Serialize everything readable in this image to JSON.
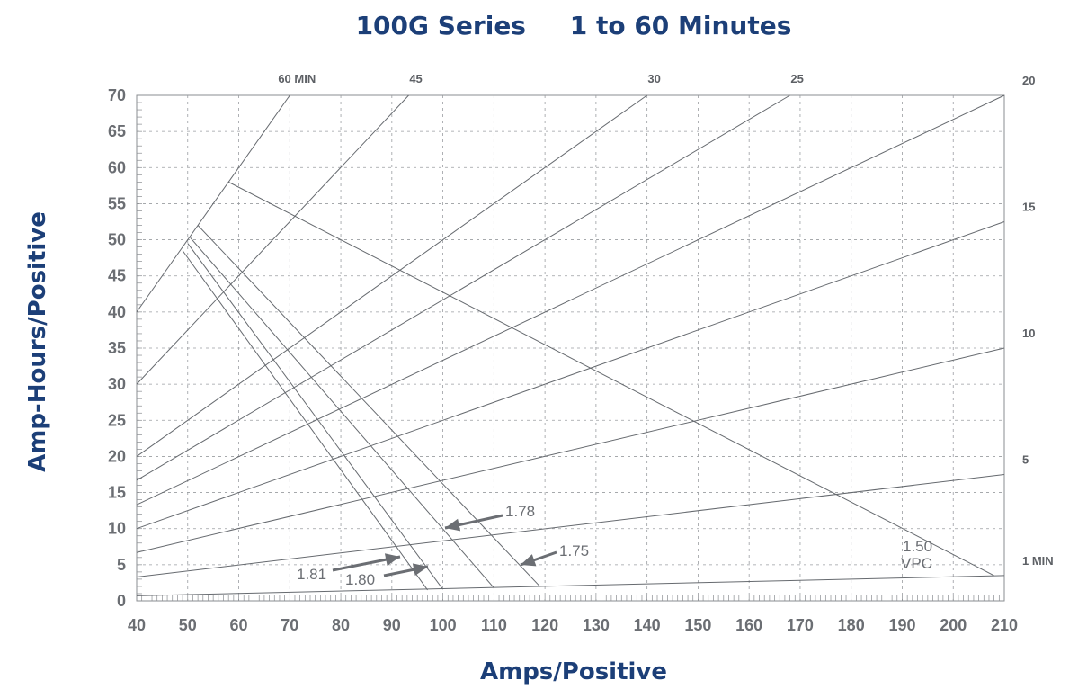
{
  "chart_data": {
    "type": "line",
    "title": "100G Series     1 to 60 Minutes",
    "xlabel": "Amps/Positive",
    "ylabel": "Amp-Hours/Positive",
    "xlim": [
      40,
      210
    ],
    "ylim": [
      0,
      70
    ],
    "x_ticks": [
      "40",
      "50",
      "60",
      "70",
      "80",
      "90",
      "100",
      "110",
      "120",
      "130",
      "140",
      "150",
      "160",
      "170",
      "180",
      "190",
      "200",
      "210"
    ],
    "y_ticks": [
      "0",
      "5",
      "10",
      "15",
      "20",
      "25",
      "30",
      "35",
      "40",
      "45",
      "50",
      "55",
      "60",
      "65",
      "70"
    ],
    "grid": true,
    "duration_lines": [
      {
        "label": "60 MIN",
        "label_pos": "top",
        "points": [
          [
            40,
            40
          ],
          [
            70,
            70
          ]
        ]
      },
      {
        "label": "45",
        "label_pos": "top",
        "points": [
          [
            40,
            30
          ],
          [
            93.3,
            70
          ]
        ]
      },
      {
        "label": "30",
        "label_pos": "top",
        "points": [
          [
            40,
            20
          ],
          [
            140,
            70
          ]
        ]
      },
      {
        "label": "25",
        "label_pos": "top",
        "points": [
          [
            40,
            16.7
          ],
          [
            168,
            70
          ]
        ]
      },
      {
        "label": "20",
        "label_pos": "right",
        "points": [
          [
            40,
            13.3
          ],
          [
            210,
            70
          ]
        ]
      },
      {
        "label": "15",
        "label_pos": "right",
        "points": [
          [
            40,
            10
          ],
          [
            210,
            52.5
          ]
        ]
      },
      {
        "label": "10",
        "label_pos": "right",
        "points": [
          [
            40,
            6.7
          ],
          [
            210,
            35
          ]
        ]
      },
      {
        "label": "5",
        "label_pos": "right",
        "points": [
          [
            40,
            3.3
          ],
          [
            210,
            17.5
          ]
        ]
      },
      {
        "label": "1 MIN",
        "label_pos": "right",
        "points": [
          [
            40,
            0.7
          ],
          [
            210,
            3.5
          ]
        ]
      }
    ],
    "voltage_curves": [
      {
        "label": "1.81",
        "points": [
          [
            49,
            48.5
          ],
          [
            97,
            1.5
          ]
        ]
      },
      {
        "label": "1.80",
        "points": [
          [
            50,
            49.5
          ],
          [
            100,
            1.6
          ]
        ]
      },
      {
        "label": "1.78",
        "points": [
          [
            50.5,
            50.3
          ],
          [
            110,
            1.8
          ]
        ]
      },
      {
        "label": "1.75",
        "points": [
          [
            52,
            52
          ],
          [
            119,
            2
          ]
        ]
      },
      {
        "label": "1.50",
        "points": [
          [
            58,
            58
          ],
          [
            208,
            3.5
          ]
        ]
      }
    ],
    "annotations": {
      "vpc_label": "1.50",
      "vpc_unit": "VPC"
    }
  }
}
